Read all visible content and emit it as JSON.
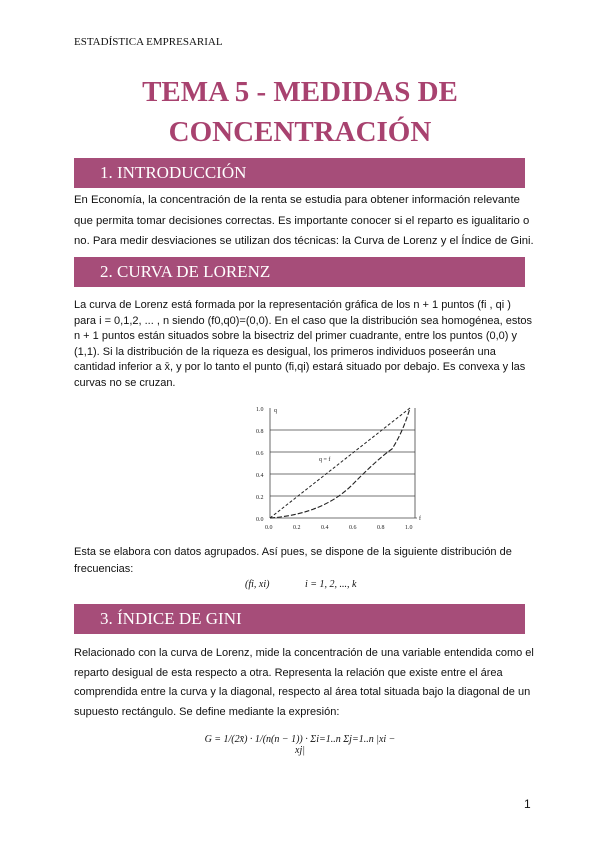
{
  "running_header": "ESTADÍSTICA EMPRESARIAL",
  "title_lines": [
    "TEMA 5 - MEDIDAS DE",
    "CONCENTRACIÓN"
  ],
  "sections": [
    {
      "heading": "1. INTRODUCCIÓN",
      "text": "En Economía, la concentración de la renta se estudia para obtener información relevante que permita tomar decisiones correctas. Es importante conocer si el reparto es igualitario o no. Para medir desviaciones se utilizan dos técnicas: la Curva de Lorenz y el Índice de Gini."
    },
    {
      "heading": "2. CURVA DE LORENZ",
      "text": "La curva de Lorenz está formada por la representación gráfica de los n + 1 puntos (fi , qi ) para i = 0,1,2, ... , n siendo (f0,q0)=(0,0). En el caso que la distribución sea homogénea, estos n + 1 puntos están situados sobre la bisectriz del primer cuadrante, entre los puntos (0,0) y (1,1). Si la distribución de la riqueza es desigual, los primeros individuos poseerán una cantidad inferior a x̄, y por lo tanto el punto (fi,qi) estará situado por debajo. Es convexa y las curvas no se cruzan.",
      "figure": {
        "y_label": "q",
        "x_label": "f",
        "diag_label": "q = f",
        "y_ticks": [
          "0.0",
          "0.2",
          "0.4",
          "0.6",
          "0.8",
          "1.0"
        ],
        "x_ticks": [
          "0.0",
          "0.2",
          "0.4",
          "0.6",
          "0.8",
          "1.0"
        ]
      },
      "text2": "Esta se elabora con datos agrupados. Así pues, se dispone de la siguiente distribución de frecuencias:",
      "formula_left": "(fi, xi)",
      "formula_right": "i = 1, 2, ..., k"
    },
    {
      "heading": "3. ÍNDICE DE GINI",
      "text": "Relacionado con la curva de Lorenz, mide la concentración de una variable entendida como el reparto desigual de esta respecto a otra. Representa la relación que existe entre el área comprendida entre la curva y la diagonal, respecto al área total situada bajo la diagonal de un supuesto rectángulo. Se define mediante la expresión:",
      "formula": "G = 1/(2x̄) · 1/(n(n − 1)) · Σi=1..n Σj=1..n |xi − xj|"
    }
  ],
  "page_number": "1",
  "colors": {
    "accent": "#a64d79",
    "title": "#a8426f"
  }
}
